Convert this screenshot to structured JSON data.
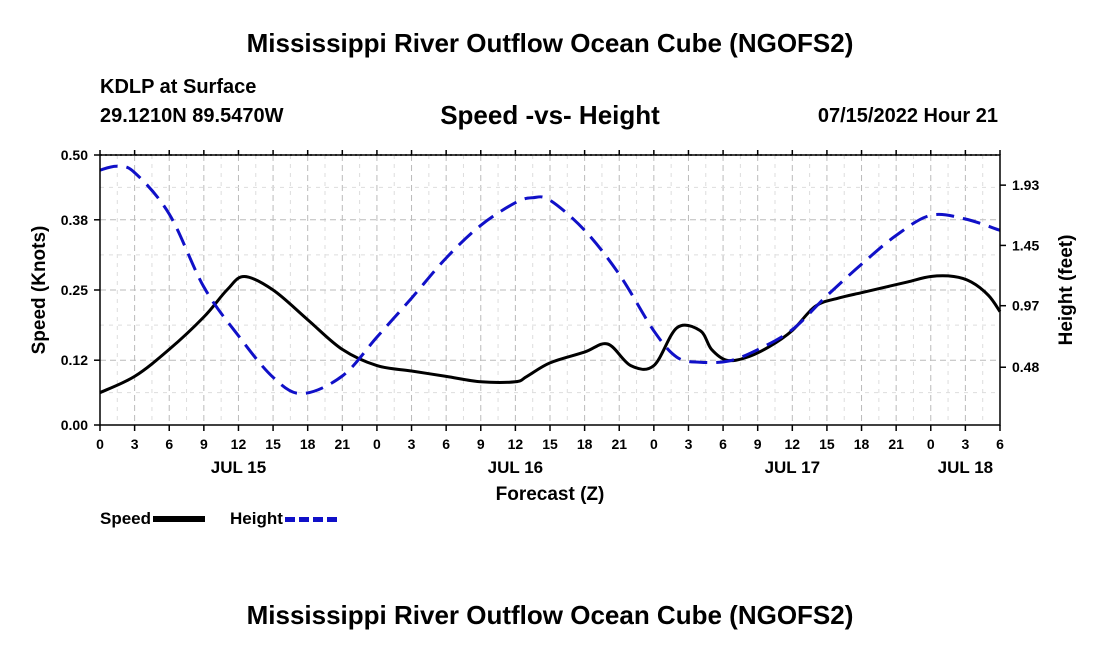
{
  "header": {
    "title": "Mississippi River Outflow Ocean Cube (NGOFS2)",
    "station": "KDLP at Surface",
    "coordinates": "29.1210N  89.5470W",
    "subtitle": "Speed -vs- Height",
    "datetime": "07/15/2022 Hour 21"
  },
  "footer": {
    "title": "Mississippi River Outflow Ocean Cube (NGOFS2)"
  },
  "legend": {
    "speed_label": "Speed",
    "height_label": "Height"
  },
  "colors": {
    "speed": "#000000",
    "height": "#1010c8",
    "grid": "#bbbbbb"
  },
  "chart_data": {
    "type": "line",
    "title": "Speed -vs- Height",
    "xlabel": "Forecast (Z)",
    "ylabel": "Speed (Knots)",
    "y2label": "Height (feet)",
    "x_range_hours": [
      0,
      78
    ],
    "ylim": [
      0,
      0.5
    ],
    "y2lim": [
      0.02,
      2.17
    ],
    "y_ticks": [
      "0.00",
      "0.12",
      "0.25",
      "0.38",
      "0.50"
    ],
    "y2_ticks": [
      "0.48",
      "0.97",
      "1.45",
      "1.93"
    ],
    "y2_tick_values": [
      0.48,
      0.97,
      1.45,
      1.93
    ],
    "x_tick_hours": [
      0,
      3,
      6,
      9,
      12,
      15,
      18,
      21,
      24,
      27,
      30,
      33,
      36,
      39,
      42,
      45,
      48,
      51,
      54,
      57,
      60,
      63,
      66,
      69,
      72,
      75,
      78
    ],
    "x_tick_labels": [
      "0",
      "3",
      "6",
      "9",
      "12",
      "15",
      "18",
      "21",
      "0",
      "3",
      "6",
      "9",
      "12",
      "15",
      "18",
      "21",
      "0",
      "3",
      "6",
      "9",
      "12",
      "15",
      "18",
      "21",
      "0",
      "3",
      "6"
    ],
    "date_labels": [
      {
        "hour": 12,
        "label": "JUL 15"
      },
      {
        "hour": 36,
        "label": "JUL 16"
      },
      {
        "hour": 60,
        "label": "JUL 17"
      },
      {
        "hour": 75,
        "label": "JUL 18"
      }
    ],
    "grid": true,
    "series": [
      {
        "name": "Speed",
        "axis": "left",
        "style": "solid",
        "x": [
          0,
          3,
          6,
          9,
          11,
          12.5,
          15,
          18,
          21,
          24,
          27,
          30,
          33,
          36,
          37,
          39,
          42,
          44,
          46,
          48,
          50,
          52,
          53,
          54.3,
          56,
          58,
          60,
          62,
          64,
          66,
          68,
          70,
          72,
          74,
          75.5,
          77,
          78
        ],
        "y": [
          0.06,
          0.09,
          0.14,
          0.2,
          0.25,
          0.275,
          0.25,
          0.195,
          0.14,
          0.11,
          0.1,
          0.09,
          0.08,
          0.08,
          0.09,
          0.115,
          0.135,
          0.15,
          0.11,
          0.11,
          0.18,
          0.175,
          0.14,
          0.12,
          0.125,
          0.145,
          0.175,
          0.22,
          0.235,
          0.245,
          0.255,
          0.265,
          0.275,
          0.275,
          0.265,
          0.24,
          0.21
        ]
      },
      {
        "name": "Height",
        "axis": "right",
        "style": "dashed",
        "x": [
          0,
          1.5,
          3,
          6,
          9,
          12,
          15,
          17.5,
          21,
          24,
          27,
          30,
          33,
          36,
          37.5,
          39,
          42,
          45,
          48,
          50,
          52,
          54.5,
          57,
          60,
          63,
          66,
          69,
          72,
          75,
          78
        ],
        "y": [
          2.05,
          2.08,
          2.03,
          1.7,
          1.12,
          0.73,
          0.4,
          0.27,
          0.41,
          0.72,
          1.03,
          1.35,
          1.61,
          1.79,
          1.83,
          1.81,
          1.57,
          1.22,
          0.77,
          0.56,
          0.52,
          0.53,
          0.62,
          0.78,
          1.05,
          1.3,
          1.53,
          1.69,
          1.66,
          1.57
        ]
      }
    ]
  }
}
